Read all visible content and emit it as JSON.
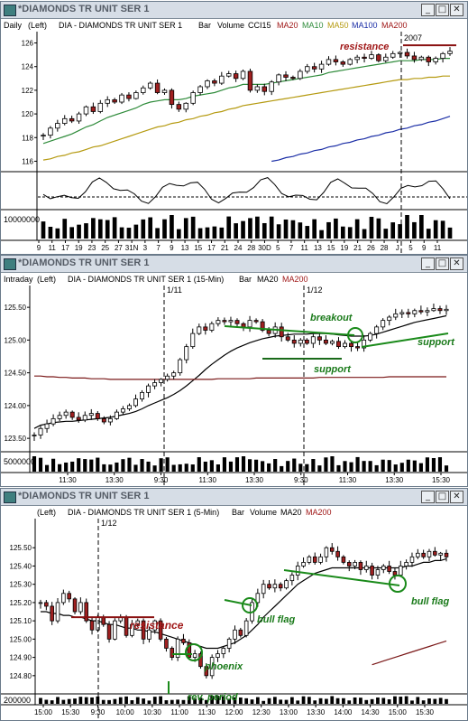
{
  "colors": {
    "up": "#ffffff",
    "down": "#a02020",
    "ma20": "#2e8b3a",
    "ma10": "#7a1818",
    "ma50": "#b59a10",
    "ma100": "#1b2ea6",
    "ma200": "#7a1818",
    "note": "#a01818",
    "note_green": "#1a7a1a"
  },
  "win1": {
    "title": "*DIAMONDS TR UNIT SER 1",
    "info": {
      "period": "Daily",
      "scale": "(Left)",
      "symbol": "DIA - DIAMONDS TR UNIT SER 1",
      "bar": "Bar",
      "volume": "Volume",
      "cci": "CCI15",
      "ma20": "MA20",
      "ma10": "MA10",
      "ma50": "MA50",
      "ma100": "MA100",
      "ma200": "MA200"
    },
    "resistance_label": "resistance",
    "year_label": "2007",
    "volume_scale": "10000000",
    "xticks": [
      "9",
      "11",
      "17",
      "19",
      "23",
      "25",
      "27",
      "31N",
      "3",
      "7",
      "9",
      "13",
      "15",
      "17",
      "21",
      "24",
      "28",
      "30D",
      "5",
      "7",
      "11",
      "13",
      "15",
      "19",
      "21",
      "26",
      "28",
      "J",
      "5",
      "9",
      "11"
    ]
  },
  "win2": {
    "title": "*DIAMONDS TR UNIT SER 1",
    "info": {
      "period": "Intraday",
      "scale": "(Left)",
      "symbol": "DIA - DIAMONDS TR UNIT SER 1 (15-Min)",
      "bar": "Bar",
      "ma20": "MA20",
      "ma200": "MA200"
    },
    "date1": "1/11",
    "date2": "1/12",
    "breakout_label": "breakout",
    "support1_label": "support",
    "support2_label": "support",
    "volume_scale": "5000000",
    "xticks": [
      "11:30",
      "13:30",
      "9:30",
      "11:30",
      "13:30",
      "9:30",
      "11:30",
      "13:30",
      "15:30"
    ]
  },
  "win3": {
    "title": "*DIAMONDS TR UNIT SER 1",
    "info": {
      "scale": "(Left)",
      "symbol": "DIA - DIAMONDS TR UNIT SER 1 (5-Min)",
      "bar": "Bar",
      "volume": "Volume",
      "ma20": "MA20",
      "ma200": "MA200"
    },
    "date1": "1/12",
    "resistance_label": "resistance",
    "phoenix_label": "phoenix",
    "bullflag1_label": "bull flag",
    "bullflag2_label": "bull flag",
    "rev_label": "rev. period",
    "volume_scale": "200000",
    "xticks": [
      "15:00",
      "15:30",
      "9:30",
      "10:00",
      "10:30",
      "11:00",
      "11:30",
      "12:00",
      "12:30",
      "13:00",
      "13:30",
      "14:00",
      "14:30",
      "15:00",
      "15:30"
    ]
  },
  "chart_data": [
    {
      "type": "line",
      "title": "DIA - DIAMONDS TR UNIT SER 1 (Daily)",
      "yticks": [
        116,
        118,
        120,
        122,
        124,
        126
      ],
      "ylim": [
        115.5,
        126.5
      ],
      "series": [
        {
          "name": "Price",
          "values": [
            118.2,
            118.8,
            119.2,
            119.6,
            119.4,
            120.0,
            120.6,
            120.2,
            120.9,
            121.2,
            121.0,
            121.6,
            121.3,
            121.8,
            122.2,
            122.6,
            121.8,
            122.0,
            120.8,
            120.4,
            120.9,
            121.8,
            122.3,
            122.8,
            122.6,
            123.2,
            123.4,
            123.0,
            123.6,
            122.0,
            122.3,
            121.9,
            122.7,
            123.3,
            123.1,
            123.0,
            123.6,
            124.0,
            123.8,
            124.2,
            124.6,
            124.4,
            124.2,
            124.6,
            124.8,
            124.7,
            125.0,
            124.5,
            124.8,
            125.1,
            125.2,
            124.9,
            124.6,
            124.8,
            124.4,
            124.7,
            125.1,
            125.3
          ]
        },
        {
          "name": "MA20",
          "values": [
            117.5,
            117.7,
            117.9,
            118.1,
            118.3,
            118.6,
            118.9,
            119.1,
            119.4,
            119.7,
            119.9,
            120.1,
            120.3,
            120.5,
            120.8,
            121.0,
            121.1,
            121.2,
            121.2,
            121.2,
            121.3,
            121.5,
            121.6,
            121.7,
            121.8,
            122.0,
            122.2,
            122.3,
            122.5,
            122.5,
            122.5,
            122.5,
            122.6,
            122.7,
            122.8,
            122.9,
            123.0,
            123.1,
            123.2,
            123.3,
            123.5,
            123.6,
            123.7,
            123.8,
            123.9,
            124.0,
            124.1,
            124.2,
            124.3,
            124.4,
            124.5,
            124.5,
            124.5,
            124.6,
            124.6,
            124.6,
            124.7,
            124.7
          ]
        },
        {
          "name": "MA50",
          "values": [
            116.1,
            116.2,
            116.4,
            116.5,
            116.7,
            116.8,
            117.0,
            117.2,
            117.3,
            117.5,
            117.7,
            117.9,
            118.1,
            118.3,
            118.5,
            118.7,
            118.9,
            119.0,
            119.2,
            119.3,
            119.5,
            119.6,
            119.8,
            119.9,
            120.1,
            120.2,
            120.4,
            120.5,
            120.7,
            120.8,
            120.9,
            121.0,
            121.1,
            121.2,
            121.3,
            121.4,
            121.5,
            121.6,
            121.7,
            121.8,
            121.9,
            122.0,
            122.1,
            122.2,
            122.3,
            122.4,
            122.5,
            122.6,
            122.7,
            122.8,
            122.9,
            122.9,
            123.0,
            123.0,
            123.1,
            123.1,
            123.2,
            123.2
          ]
        },
        {
          "name": "MA100",
          "values": [
            null,
            null,
            null,
            null,
            null,
            null,
            null,
            null,
            null,
            null,
            null,
            null,
            null,
            null,
            null,
            null,
            null,
            null,
            null,
            null,
            null,
            null,
            null,
            null,
            null,
            null,
            null,
            null,
            null,
            null,
            null,
            null,
            116.0,
            116.1,
            116.3,
            116.4,
            116.6,
            116.7,
            116.9,
            117.0,
            117.2,
            117.3,
            117.5,
            117.6,
            117.8,
            117.9,
            118.1,
            118.2,
            118.4,
            118.5,
            118.7,
            118.8,
            119.0,
            119.1,
            119.3,
            119.4,
            119.6,
            119.8
          ]
        }
      ],
      "resistance": 125.8
    },
    {
      "type": "line",
      "title": "DIA - DIAMONDS TR UNIT SER 1 (15-Min)",
      "yticks": [
        123.5,
        124.0,
        124.5,
        125.0,
        125.5
      ],
      "ylim": [
        123.35,
        125.75
      ],
      "series": [
        {
          "name": "Price",
          "values": [
            123.55,
            123.65,
            123.72,
            123.8,
            123.85,
            123.9,
            123.82,
            123.78,
            123.85,
            123.88,
            123.8,
            123.75,
            123.8,
            123.9,
            123.95,
            124.0,
            124.1,
            124.2,
            124.3,
            124.35,
            124.4,
            124.45,
            124.5,
            124.7,
            124.9,
            125.1,
            125.2,
            125.15,
            125.25,
            125.3,
            125.28,
            125.3,
            125.25,
            125.2,
            125.3,
            125.28,
            125.15,
            125.1,
            125.2,
            125.05,
            125.0,
            124.95,
            125.0,
            124.95,
            125.05,
            125.0,
            124.95,
            124.98,
            124.9,
            124.95,
            124.9,
            124.88,
            125.0,
            125.1,
            125.2,
            125.3,
            125.35,
            125.4,
            125.42,
            125.4,
            125.45,
            125.43,
            125.45,
            125.48,
            125.45,
            125.47
          ]
        },
        {
          "name": "MA20",
          "values": [
            123.65,
            123.7,
            123.72,
            123.74,
            123.75,
            123.76,
            123.76,
            123.77,
            123.78,
            123.79,
            123.8,
            123.81,
            123.82,
            123.84,
            123.86,
            123.88,
            123.91,
            123.95,
            124.0,
            124.04,
            124.08,
            124.12,
            124.17,
            124.23,
            124.3,
            124.38,
            124.46,
            124.55,
            124.63,
            124.7,
            124.77,
            124.83,
            124.88,
            124.92,
            124.96,
            124.99,
            125.02,
            125.04,
            125.06,
            125.07,
            125.08,
            125.09,
            125.09,
            125.09,
            125.1,
            125.1,
            125.1,
            125.09,
            125.08,
            125.07,
            125.06,
            125.06,
            125.06,
            125.07,
            125.09,
            125.12,
            125.15,
            125.18,
            125.21,
            125.24,
            125.27,
            125.29,
            125.31,
            125.33,
            125.35,
            125.37
          ]
        },
        {
          "name": "MA200",
          "values": [
            124.45,
            124.45,
            124.44,
            124.44,
            124.43,
            124.43,
            124.42,
            124.42,
            124.42,
            124.41,
            124.41,
            124.41,
            124.4,
            124.4,
            124.4,
            124.4,
            124.4,
            124.4,
            124.4,
            124.4,
            124.4,
            124.4,
            124.4,
            124.4,
            124.4,
            124.4,
            124.4,
            124.4,
            124.4,
            124.41,
            124.41,
            124.41,
            124.41,
            124.41,
            124.41,
            124.42,
            124.42,
            124.42,
            124.42,
            124.42,
            124.42,
            124.42,
            124.42,
            124.42,
            124.42,
            124.43,
            124.43,
            124.43,
            124.43,
            124.43,
            124.43,
            124.43,
            124.43,
            124.43,
            124.43,
            124.43,
            124.44,
            124.44,
            124.44,
            124.44,
            124.44,
            124.44,
            124.44,
            124.44,
            124.44,
            124.44
          ]
        }
      ]
    },
    {
      "type": "line",
      "title": "DIA - DIAMONDS TR UNIT SER 1 (5-Min)",
      "yticks": [
        124.8,
        124.9,
        125.0,
        125.1,
        125.2,
        125.3,
        125.4,
        125.5
      ],
      "ylim": [
        124.72,
        125.6
      ],
      "series": [
        {
          "name": "Price",
          "values": [
            125.2,
            125.18,
            125.1,
            125.2,
            125.25,
            125.22,
            125.15,
            125.2,
            125.1,
            125.05,
            125.12,
            125.08,
            125.0,
            125.1,
            125.12,
            125.02,
            125.08,
            125.1,
            125.0,
            125.05,
            125.1,
            125.0,
            124.95,
            124.9,
            125.0,
            124.98,
            124.9,
            124.92,
            124.85,
            124.8,
            124.9,
            124.92,
            124.95,
            125.0,
            125.05,
            125.02,
            125.1,
            125.2,
            125.25,
            125.3,
            125.28,
            125.3,
            125.28,
            125.32,
            125.35,
            125.4,
            125.42,
            125.45,
            125.42,
            125.45,
            125.5,
            125.48,
            125.45,
            125.42,
            125.4,
            125.42,
            125.38,
            125.4,
            125.35,
            125.38,
            125.4,
            125.37,
            125.35,
            125.4,
            125.42,
            125.45,
            125.47,
            125.45,
            125.48,
            125.46,
            125.47,
            125.45
          ]
        },
        {
          "name": "MA20",
          "values": [
            125.15,
            125.15,
            125.14,
            125.14,
            125.13,
            125.13,
            125.12,
            125.12,
            125.11,
            125.1,
            125.1,
            125.09,
            125.08,
            125.08,
            125.07,
            125.06,
            125.06,
            125.05,
            125.05,
            125.04,
            125.04,
            125.03,
            125.02,
            125.01,
            125.0,
            124.99,
            124.98,
            124.97,
            124.96,
            124.95,
            124.95,
            124.95,
            124.96,
            124.97,
            124.98,
            125.0,
            125.02,
            125.05,
            125.08,
            125.12,
            125.15,
            125.18,
            125.21,
            125.24,
            125.27,
            125.3,
            125.32,
            125.34,
            125.36,
            125.37,
            125.38,
            125.39,
            125.39,
            125.39,
            125.39,
            125.39,
            125.39,
            125.39,
            125.39,
            125.39,
            125.39,
            125.39,
            125.39,
            125.39,
            125.4,
            125.4,
            125.41,
            125.42,
            125.42,
            125.43,
            125.43,
            125.44
          ]
        },
        {
          "name": "MA200",
          "values": [
            null,
            null,
            null,
            null,
            null,
            null,
            null,
            null,
            null,
            null,
            null,
            null,
            null,
            null,
            null,
            null,
            null,
            null,
            null,
            null,
            null,
            null,
            null,
            null,
            null,
            null,
            null,
            null,
            null,
            null,
            null,
            null,
            null,
            null,
            null,
            null,
            null,
            null,
            null,
            null,
            null,
            null,
            null,
            null,
            null,
            null,
            null,
            null,
            null,
            null,
            null,
            null,
            null,
            null,
            null,
            null,
            null,
            null,
            124.86,
            124.87,
            124.88,
            124.89,
            124.9,
            124.91,
            124.92,
            124.93,
            124.94,
            124.95,
            124.96,
            124.97,
            124.98,
            124.99
          ]
        }
      ],
      "resistance": 125.12
    }
  ]
}
